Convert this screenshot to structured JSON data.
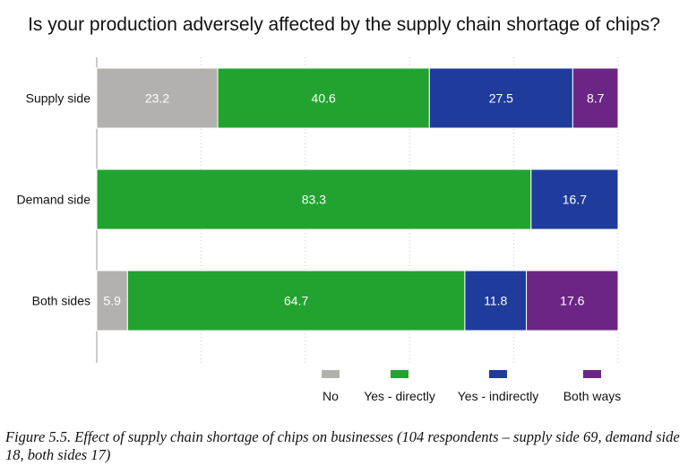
{
  "chart_data": {
    "type": "bar",
    "orientation": "horizontal",
    "stacked": true,
    "title": "Is your production adversely affected by the supply chain shortage of chips?",
    "categories": [
      "Supply side",
      "Demand side",
      "Both sides"
    ],
    "series": [
      {
        "name": "No",
        "values": [
          23.2,
          0,
          5.9
        ],
        "color": "#b3b1ad"
      },
      {
        "name": "Yes - directly",
        "values": [
          40.6,
          83.3,
          64.7
        ],
        "color": "#22a32f"
      },
      {
        "name": "Yes - indirectly",
        "values": [
          27.5,
          16.7,
          11.8
        ],
        "color": "#1f3c9c"
      },
      {
        "name": "Both ways",
        "values": [
          8.7,
          0,
          17.6
        ],
        "color": "#6b2585"
      }
    ],
    "xlim": [
      0,
      100
    ],
    "grid": true,
    "legend_position": "bottom-right"
  },
  "caption": "Figure 5.5. Effect of supply chain shortage of chips on businesses (104 respondents – supply side 69, demand side 18, both sides 17)"
}
